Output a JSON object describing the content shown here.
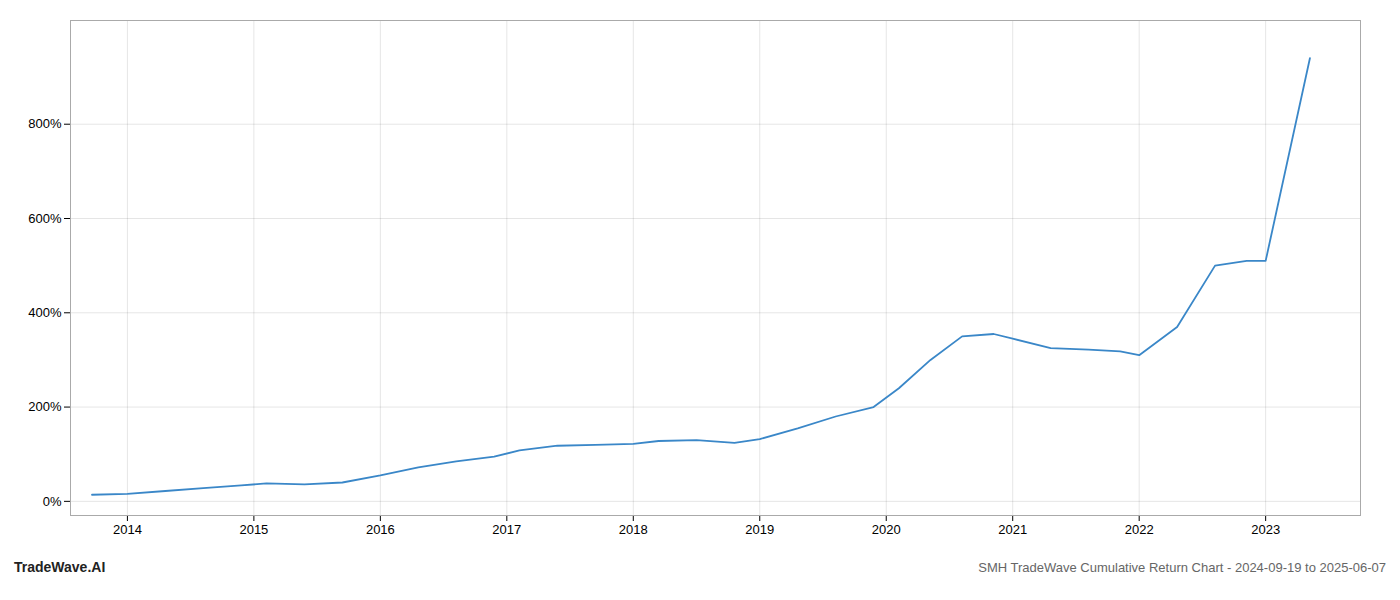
{
  "chart_data": {
    "type": "line",
    "title": "SMH TradeWave Cumulative Return Chart - 2024-09-19 to 2025-06-07",
    "annotations": [
      "TradeWave.AI"
    ],
    "color": "#3a87c8",
    "x": [
      2013.72,
      2014.0,
      2014.3,
      2014.6,
      2014.9,
      2015.1,
      2015.4,
      2015.7,
      2016.0,
      2016.3,
      2016.6,
      2016.9,
      2017.1,
      2017.4,
      2017.7,
      2018.0,
      2018.2,
      2018.5,
      2018.8,
      2019.0,
      2019.3,
      2019.6,
      2019.9,
      2020.1,
      2020.35,
      2020.6,
      2020.85,
      2021.0,
      2021.3,
      2021.6,
      2021.85,
      2022.0,
      2022.3,
      2022.6,
      2022.85,
      2023.0,
      2023.35
    ],
    "values": [
      14,
      16,
      22,
      28,
      34,
      38,
      36,
      40,
      55,
      72,
      85,
      95,
      108,
      118,
      120,
      122,
      128,
      130,
      124,
      132,
      155,
      180,
      200,
      240,
      300,
      350,
      355,
      345,
      325,
      322,
      318,
      310,
      370,
      500,
      510,
      510,
      940
    ],
    "xlim": [
      2013.55,
      2023.75
    ],
    "xticks": [
      2014,
      2015,
      2016,
      2017,
      2018,
      2019,
      2020,
      2021,
      2022,
      2023
    ],
    "ylim": [
      -30,
      1020
    ],
    "yticks": [
      {
        "value": 0,
        "label": "0%"
      },
      {
        "value": 200,
        "label": "200%"
      },
      {
        "value": 400,
        "label": "400%"
      },
      {
        "value": 600,
        "label": "600%"
      },
      {
        "value": 800,
        "label": "800%"
      }
    ],
    "grid": true
  }
}
